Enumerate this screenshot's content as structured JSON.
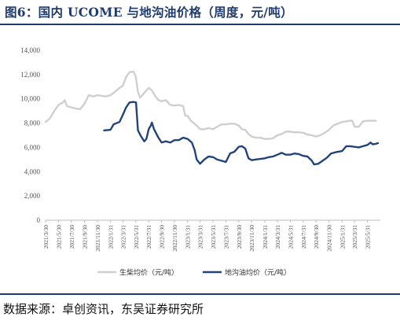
{
  "figure": {
    "title": "图6：国内 UCOME 与地沟油价格（周度，元/吨）",
    "source": "数据来源：卓创资讯，东吴证券研究所"
  },
  "colors": {
    "title": "#1f3b6e",
    "biodiesel": "#cfcfcf",
    "waste_oil": "#23437a",
    "axis": "#bbbbbb"
  },
  "chart_data": {
    "type": "line",
    "x_ticks": [
      "2021/3/30",
      "2021/5/30",
      "2021/7/30",
      "2021/9/30",
      "2021/11/30",
      "2022/1/31",
      "2022/3/31",
      "2022/5/31",
      "2022/7/31",
      "2022/9/30",
      "2022/11/30",
      "2023/1/31",
      "2023/3/31",
      "2023/5/31",
      "2023/7/31",
      "2023/9/30",
      "2023/11/30",
      "2024/1/31",
      "2024/3/31",
      "2024/5/31",
      "2024/7/31",
      "2024/9/30",
      "2024/11/30",
      "2025/1/31",
      "2025/3/31",
      "2025/5/31"
    ],
    "y_ticks": [
      0,
      2000,
      4000,
      6000,
      8000,
      10000,
      12000,
      14000
    ],
    "y_tick_labels": [
      "0",
      "2,000",
      "4,000",
      "6,000",
      "8,000",
      "10,000",
      "12,000",
      "14,000"
    ],
    "ylim": [
      0,
      14000
    ],
    "xlim": [
      "2021/3/30",
      "2025/7/31"
    ],
    "legend_position": "bottom",
    "series": [
      {
        "name": "生柴均价（元/吨）",
        "color": "#cfcfcf",
        "points": [
          [
            "2021/3/30",
            8100
          ],
          [
            "2021/4/20",
            8400
          ],
          [
            "2021/5/10",
            9000
          ],
          [
            "2021/5/30",
            9500
          ],
          [
            "2021/6/20",
            9700
          ],
          [
            "2021/6/28",
            9900
          ],
          [
            "2021/7/10",
            9400
          ],
          [
            "2021/7/30",
            9300
          ],
          [
            "2021/8/20",
            9200
          ],
          [
            "2021/9/10",
            9150
          ],
          [
            "2021/9/30",
            9600
          ],
          [
            "2021/10/20",
            10300
          ],
          [
            "2021/11/10",
            10200
          ],
          [
            "2021/11/30",
            10300
          ],
          [
            "2021/12/20",
            10250
          ],
          [
            "2022/1/10",
            10200
          ],
          [
            "2022/1/31",
            10300
          ],
          [
            "2022/2/15",
            10500
          ],
          [
            "2022/3/1",
            10700
          ],
          [
            "2022/3/15",
            10900
          ],
          [
            "2022/3/31",
            11100
          ],
          [
            "2022/4/15",
            11800
          ],
          [
            "2022/5/1",
            12200
          ],
          [
            "2022/5/20",
            12250
          ],
          [
            "2022/5/31",
            11800
          ],
          [
            "2022/6/10",
            10600
          ],
          [
            "2022/6/20",
            10100
          ],
          [
            "2022/7/1",
            10300
          ],
          [
            "2022/7/15",
            10600
          ],
          [
            "2022/7/31",
            10900
          ],
          [
            "2022/8/15",
            10700
          ],
          [
            "2022/9/1",
            10200
          ],
          [
            "2022/9/15",
            9900
          ],
          [
            "2022/9/30",
            9800
          ],
          [
            "2022/10/20",
            9900
          ],
          [
            "2022/11/10",
            9500
          ],
          [
            "2022/11/30",
            9450
          ],
          [
            "2022/12/20",
            9500
          ],
          [
            "2023/1/10",
            9400
          ],
          [
            "2023/1/20",
            8600
          ],
          [
            "2023/1/31",
            8600
          ],
          [
            "2023/2/15",
            8200
          ],
          [
            "2023/3/1",
            8000
          ],
          [
            "2023/3/15",
            7800
          ],
          [
            "2023/3/31",
            7500
          ],
          [
            "2023/4/20",
            7500
          ],
          [
            "2023/5/10",
            7600
          ],
          [
            "2023/5/31",
            7500
          ],
          [
            "2023/6/20",
            7700
          ],
          [
            "2023/7/10",
            7900
          ],
          [
            "2023/7/31",
            7900
          ],
          [
            "2023/8/20",
            7950
          ],
          [
            "2023/9/10",
            7950
          ],
          [
            "2023/9/30",
            7800
          ],
          [
            "2023/10/15",
            7500
          ],
          [
            "2023/10/31",
            7450
          ],
          [
            "2023/11/15",
            7100
          ],
          [
            "2023/11/30",
            6900
          ],
          [
            "2023/12/20",
            6800
          ],
          [
            "2024/1/10",
            6800
          ],
          [
            "2024/1/31",
            6700
          ],
          [
            "2024/2/20",
            6700
          ],
          [
            "2024/3/10",
            6750
          ],
          [
            "2024/3/31",
            7000
          ],
          [
            "2024/4/20",
            7100
          ],
          [
            "2024/5/10",
            7300
          ],
          [
            "2024/5/31",
            7300
          ],
          [
            "2024/6/20",
            7250
          ],
          [
            "2024/7/10",
            7250
          ],
          [
            "2024/7/31",
            7200
          ],
          [
            "2024/8/20",
            7050
          ],
          [
            "2024/9/10",
            7000
          ],
          [
            "2024/9/30",
            6900
          ],
          [
            "2024/10/20",
            7000
          ],
          [
            "2024/11/10",
            7200
          ],
          [
            "2024/11/30",
            7450
          ],
          [
            "2024/12/20",
            7800
          ],
          [
            "2025/1/10",
            7950
          ],
          [
            "2025/1/31",
            8100
          ],
          [
            "2025/2/20",
            8150
          ],
          [
            "2025/3/10",
            8200
          ],
          [
            "2025/3/20",
            8200
          ],
          [
            "2025/3/31",
            7700
          ],
          [
            "2025/4/20",
            7700
          ],
          [
            "2025/5/10",
            8150
          ],
          [
            "2025/5/31",
            8200
          ],
          [
            "2025/6/20",
            8200
          ],
          [
            "2025/7/10",
            8200
          ]
        ]
      },
      {
        "name": "地沟油均价（元/吨）",
        "color": "#23437a",
        "points": [
          [
            "2022/1/1",
            7400
          ],
          [
            "2022/1/31",
            7450
          ],
          [
            "2022/2/15",
            7900
          ],
          [
            "2022/3/1",
            8000
          ],
          [
            "2022/3/15",
            8100
          ],
          [
            "2022/3/31",
            8700
          ],
          [
            "2022/4/15",
            9300
          ],
          [
            "2022/5/1",
            9700
          ],
          [
            "2022/5/20",
            9750
          ],
          [
            "2022/6/1",
            9700
          ],
          [
            "2022/6/10",
            7400
          ],
          [
            "2022/6/25",
            6900
          ],
          [
            "2022/7/10",
            6500
          ],
          [
            "2022/7/20",
            6700
          ],
          [
            "2022/7/31",
            7500
          ],
          [
            "2022/8/10",
            7800
          ],
          [
            "2022/8/15",
            8050
          ],
          [
            "2022/8/25",
            7500
          ],
          [
            "2022/9/15",
            6800
          ],
          [
            "2022/9/30",
            6400
          ],
          [
            "2022/10/20",
            6500
          ],
          [
            "2022/11/10",
            6400
          ],
          [
            "2022/11/30",
            6600
          ],
          [
            "2022/12/20",
            6600
          ],
          [
            "2023/1/10",
            6800
          ],
          [
            "2023/1/31",
            6700
          ],
          [
            "2023/2/20",
            6400
          ],
          [
            "2023/3/5",
            5800
          ],
          [
            "2023/3/15",
            5000
          ],
          [
            "2023/3/31",
            4650
          ],
          [
            "2023/4/20",
            5000
          ],
          [
            "2023/5/10",
            5250
          ],
          [
            "2023/5/31",
            5200
          ],
          [
            "2023/6/20",
            5000
          ],
          [
            "2023/7/10",
            4900
          ],
          [
            "2023/7/31",
            4800
          ],
          [
            "2023/8/20",
            5500
          ],
          [
            "2023/9/10",
            5650
          ],
          [
            "2023/9/30",
            6050
          ],
          [
            "2023/10/15",
            6100
          ],
          [
            "2023/10/31",
            5900
          ],
          [
            "2023/11/15",
            5100
          ],
          [
            "2023/11/30",
            4950
          ],
          [
            "2023/12/20",
            5000
          ],
          [
            "2024/1/10",
            5050
          ],
          [
            "2024/1/31",
            5100
          ],
          [
            "2024/2/20",
            5200
          ],
          [
            "2024/3/10",
            5250
          ],
          [
            "2024/3/31",
            5400
          ],
          [
            "2024/4/20",
            5550
          ],
          [
            "2024/5/10",
            5400
          ],
          [
            "2024/5/31",
            5400
          ],
          [
            "2024/6/20",
            5500
          ],
          [
            "2024/7/10",
            5450
          ],
          [
            "2024/7/31",
            5300
          ],
          [
            "2024/8/20",
            5250
          ],
          [
            "2024/9/10",
            4900
          ],
          [
            "2024/9/20",
            4600
          ],
          [
            "2024/10/10",
            4650
          ],
          [
            "2024/10/31",
            4900
          ],
          [
            "2024/11/20",
            5150
          ],
          [
            "2024/12/10",
            5500
          ],
          [
            "2024/12/31",
            5600
          ],
          [
            "2025/1/31",
            5700
          ],
          [
            "2025/2/20",
            6100
          ],
          [
            "2025/3/10",
            6100
          ],
          [
            "2025/3/31",
            6050
          ],
          [
            "2025/4/20",
            6000
          ],
          [
            "2025/5/10",
            6100
          ],
          [
            "2025/5/31",
            6200
          ],
          [
            "2025/6/15",
            6400
          ],
          [
            "2025/6/25",
            6250
          ],
          [
            "2025/7/10",
            6300
          ],
          [
            "2025/7/20",
            6350
          ]
        ]
      }
    ]
  }
}
